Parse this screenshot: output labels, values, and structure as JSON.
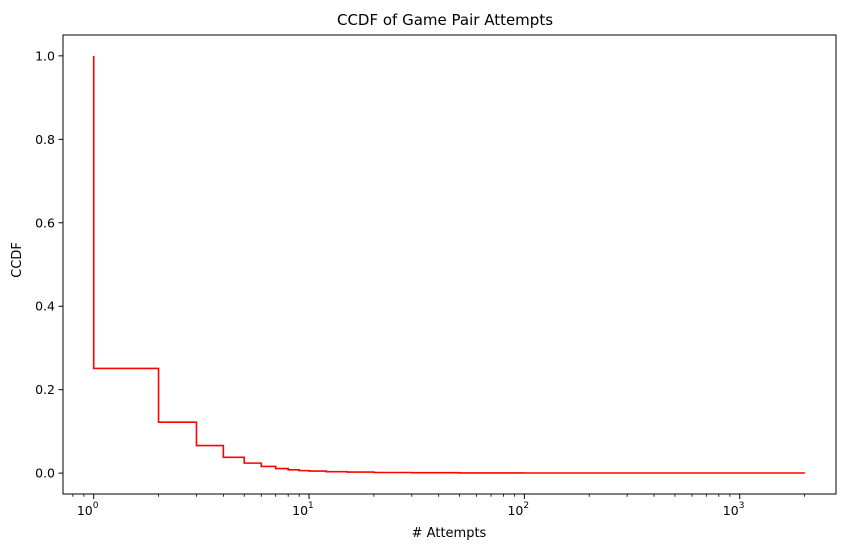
{
  "chart_data": {
    "type": "line",
    "title": "CCDF of Game Pair Attempts",
    "xlabel": "# Attempts",
    "ylabel": "CCDF",
    "xscale": "log",
    "xlim": [
      0.72,
      2800
    ],
    "ylim": [
      -0.05,
      1.05
    ],
    "grid": false,
    "legend": "none",
    "line_color": "#ff0000",
    "drawstyle": "steps-post",
    "x_ticks": [
      {
        "base": "10",
        "exp": "0",
        "value": 1
      },
      {
        "base": "10",
        "exp": "1",
        "value": 10
      },
      {
        "base": "10",
        "exp": "2",
        "value": 100
      },
      {
        "base": "10",
        "exp": "3",
        "value": 1000
      }
    ],
    "y_ticks": [
      {
        "label": "0.0",
        "value": 0.0
      },
      {
        "label": "0.2",
        "value": 0.2
      },
      {
        "label": "0.4",
        "value": 0.4
      },
      {
        "label": "0.6",
        "value": 0.6
      },
      {
        "label": "0.8",
        "value": 0.8
      },
      {
        "label": "1.0",
        "value": 1.0
      }
    ],
    "series": [
      {
        "x": [
          1,
          1,
          2,
          3,
          4,
          5,
          6,
          7,
          8,
          9,
          10,
          12,
          15,
          20,
          30,
          50,
          100,
          2000
        ],
        "y": [
          1.0,
          0.251,
          0.122,
          0.066,
          0.038,
          0.024,
          0.016,
          0.011,
          0.008,
          0.006,
          0.005,
          0.0035,
          0.0025,
          0.0015,
          0.001,
          0.0006,
          0.0003,
          0.0
        ]
      }
    ]
  }
}
